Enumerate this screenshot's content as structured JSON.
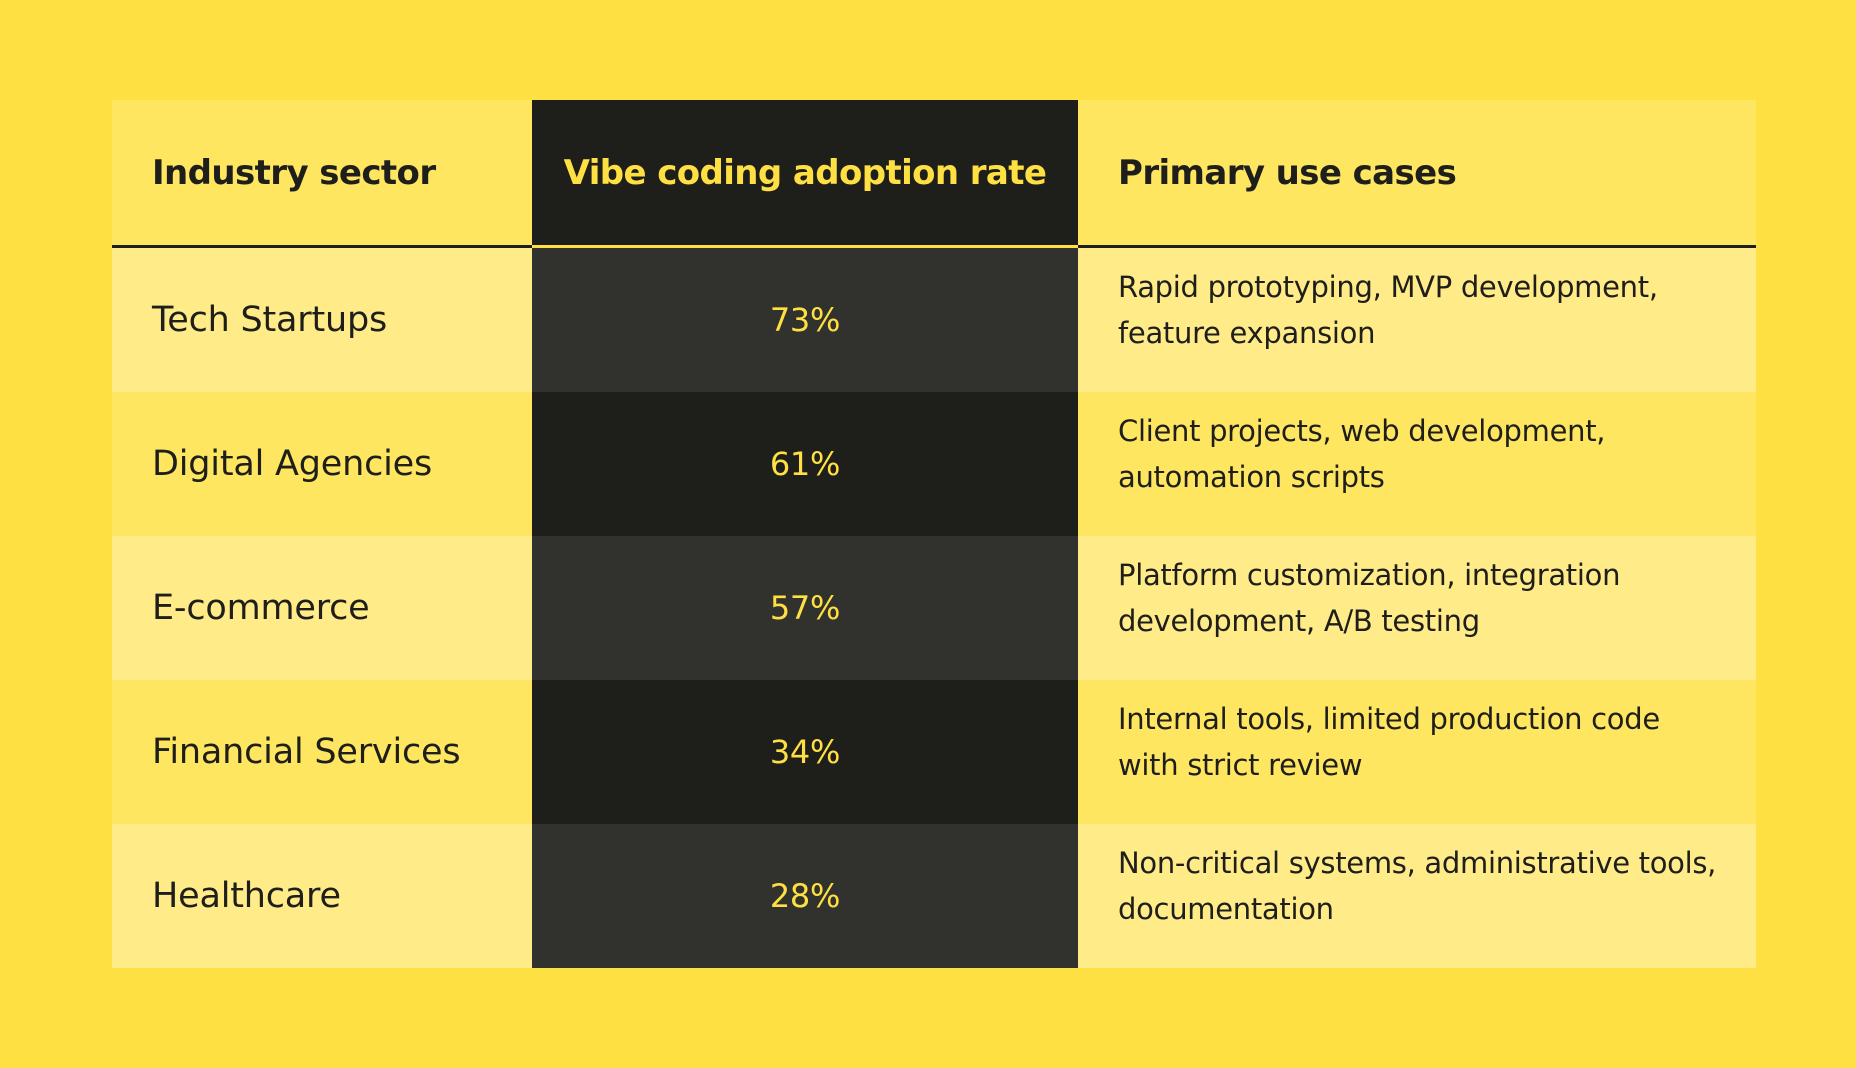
{
  "colors": {
    "background": "#FFE043",
    "header_light": "#FFE661",
    "row_light": "#FFEB88",
    "row_mid": "#FFE661",
    "accent_dark": "#1E1E1B",
    "accent_dark_alt": "#31312E",
    "accent_text": "#FFE043"
  },
  "table": {
    "headers": [
      "Industry sector",
      "Vibe coding adoption rate",
      "Primary use cases"
    ],
    "rows": [
      {
        "sector": "Tech Startups",
        "rate": "73%",
        "uses": "Rapid prototyping, MVP development, feature expansion"
      },
      {
        "sector": "Digital Agencies",
        "rate": "61%",
        "uses": "Client projects, web development, automation scripts"
      },
      {
        "sector": "E-commerce",
        "rate": "57%",
        "uses": "Platform customization, integration development, A/B testing"
      },
      {
        "sector": "Financial Services",
        "rate": "34%",
        "uses": "Internal tools, limited production code with strict review"
      },
      {
        "sector": "Healthcare",
        "rate": "28%",
        "uses": "Non-critical systems, administrative tools, documentation"
      }
    ]
  }
}
